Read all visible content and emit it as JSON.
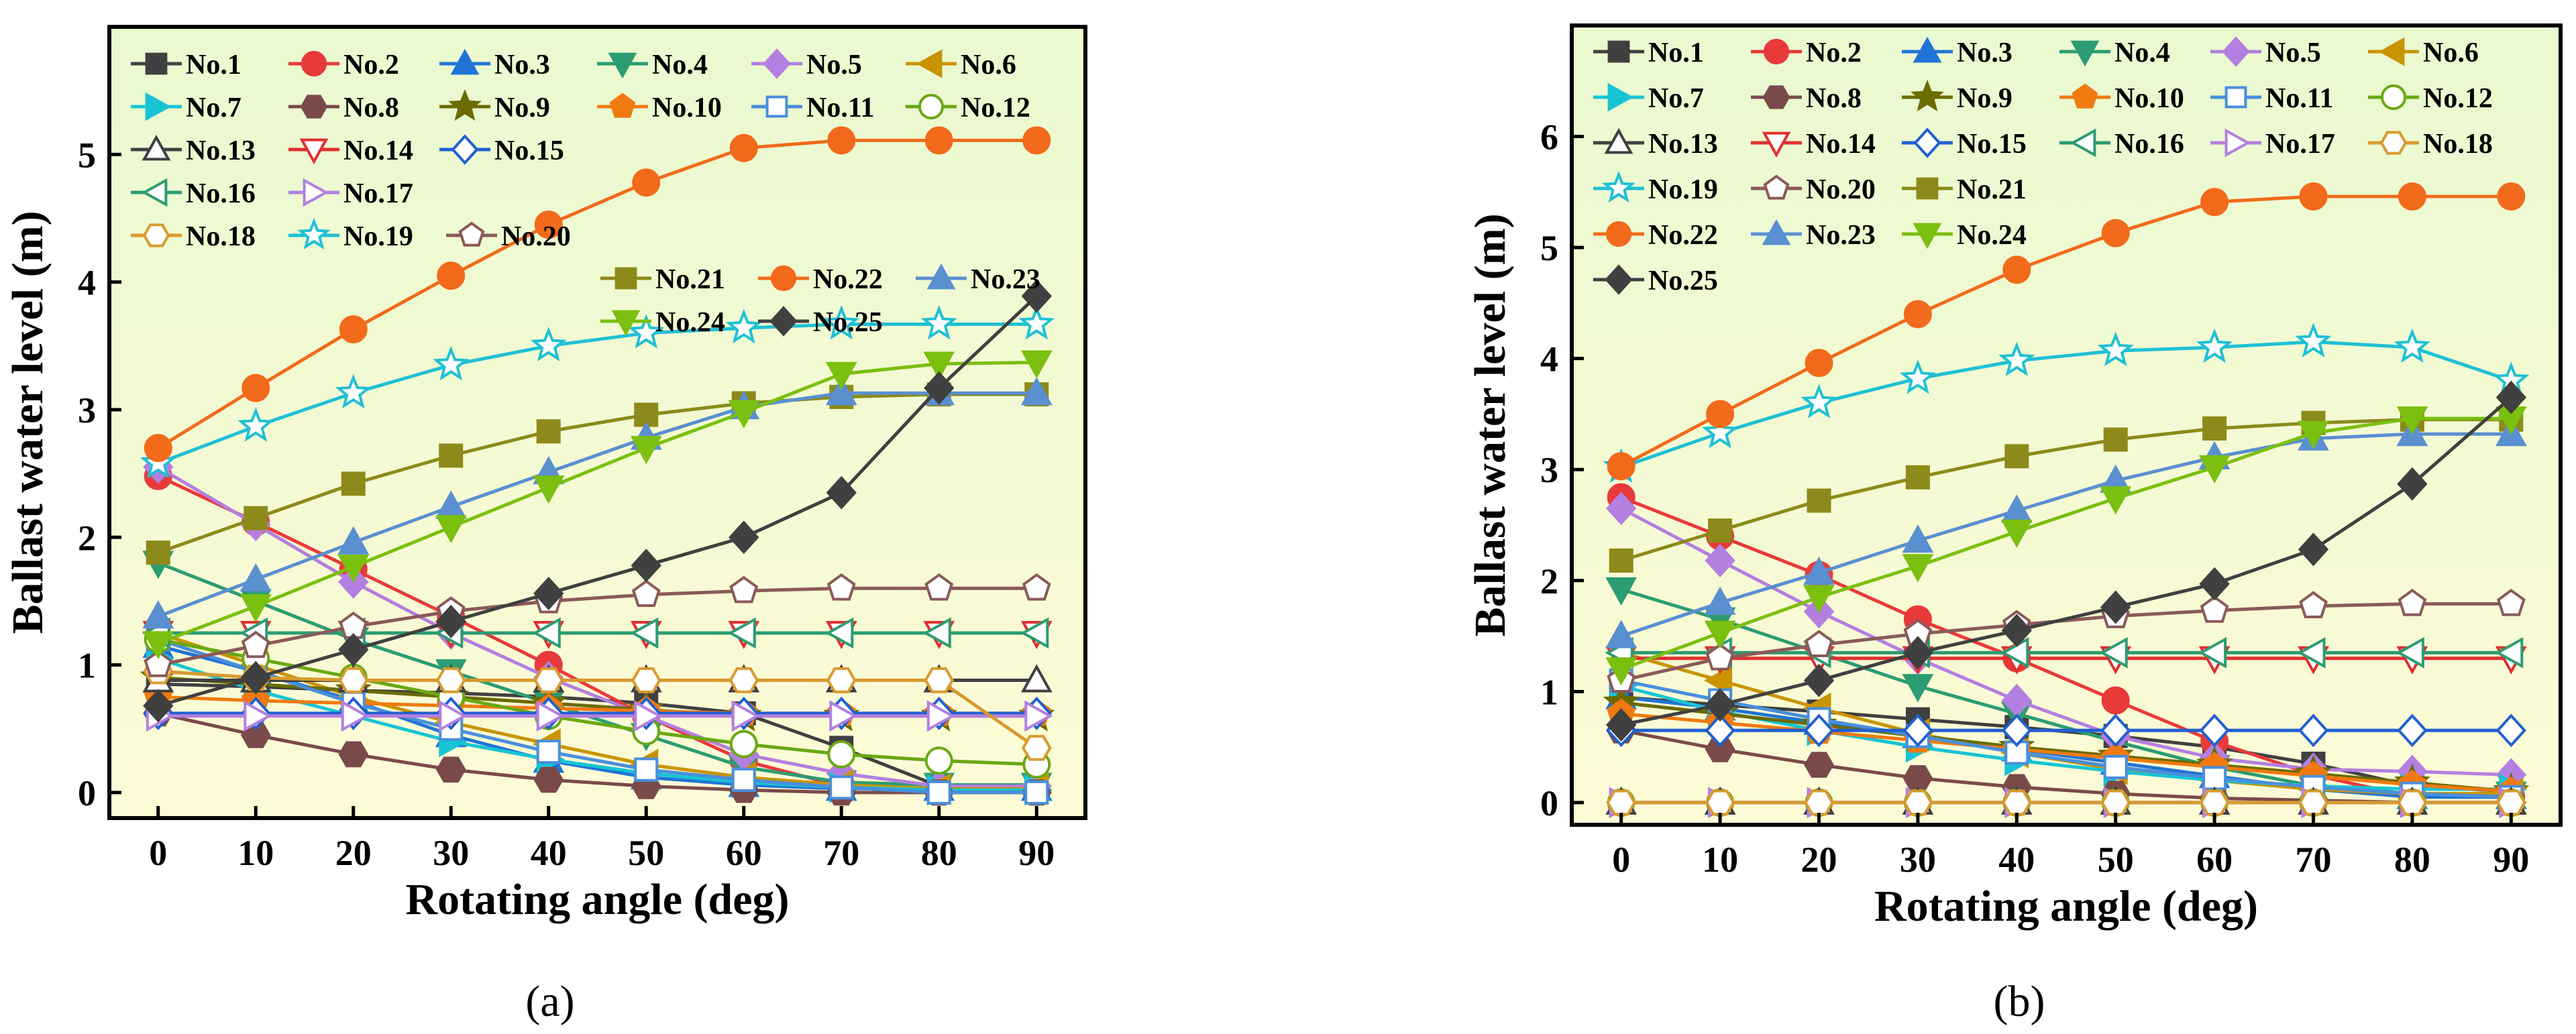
{
  "figure": {
    "caption_a": "(a)",
    "caption_b": "(b)"
  },
  "chart_data": [
    {
      "type": "line",
      "panel": "a",
      "title": "",
      "xlabel": "Rotating angle (deg)",
      "ylabel": "Ballast water level (m)",
      "x": [
        0,
        10,
        20,
        30,
        40,
        50,
        60,
        70,
        80,
        90
      ],
      "xlim": [
        -5,
        95
      ],
      "ylim": [
        -0.2,
        6.0
      ],
      "xticks": [
        0,
        10,
        20,
        30,
        40,
        50,
        60,
        70,
        80,
        90
      ],
      "yticks": [
        0,
        1,
        2,
        3,
        4,
        5
      ],
      "grid": false,
      "legend_rows": [
        [
          1,
          2,
          3,
          4,
          5,
          6
        ],
        [
          7,
          8,
          9,
          10,
          11,
          12
        ],
        [
          13,
          14,
          15
        ],
        [
          16,
          17
        ],
        [
          18,
          19,
          20
        ],
        [
          21,
          22,
          23
        ],
        [
          24,
          25
        ]
      ],
      "series": [
        {
          "name": "No.1",
          "color": "#404040",
          "marker": "square",
          "values": [
            0.85,
            0.83,
            0.8,
            0.78,
            0.75,
            0.7,
            0.62,
            0.35,
            0.05,
            0.03
          ]
        },
        {
          "name": "No.2",
          "color": "#e83a3a",
          "marker": "circle",
          "values": [
            2.48,
            2.12,
            1.75,
            1.38,
            1.0,
            0.6,
            0.25,
            0.05,
            0.02,
            0.02
          ]
        },
        {
          "name": "No.3",
          "color": "#1f74d6",
          "marker": "triangle-up",
          "values": [
            1.15,
            0.95,
            0.72,
            0.45,
            0.25,
            0.12,
            0.06,
            0.03,
            0.03,
            0.03
          ]
        },
        {
          "name": "No.4",
          "color": "#2c9c72",
          "marker": "triangle-down",
          "values": [
            1.8,
            1.5,
            1.2,
            0.95,
            0.7,
            0.45,
            0.2,
            0.08,
            0.06,
            0.06
          ]
        },
        {
          "name": "No.5",
          "color": "#b37fe0",
          "marker": "diamond",
          "values": [
            2.55,
            2.1,
            1.65,
            1.25,
            0.9,
            0.6,
            0.3,
            0.15,
            0.05,
            0.05
          ]
        },
        {
          "name": "No.6",
          "color": "#c99400",
          "marker": "triangle-left",
          "values": [
            1.25,
            1.0,
            0.75,
            0.55,
            0.38,
            0.22,
            0.12,
            0.06,
            0.03,
            0.03
          ]
        },
        {
          "name": "No.7",
          "color": "#17c4d4",
          "marker": "triangle-right",
          "values": [
            1.05,
            0.8,
            0.6,
            0.4,
            0.26,
            0.15,
            0.08,
            0.04,
            0.02,
            0.02
          ]
        },
        {
          "name": "No.8",
          "color": "#7a4a4a",
          "marker": "hexagon",
          "values": [
            0.62,
            0.45,
            0.3,
            0.18,
            0.1,
            0.05,
            0.02,
            0.0,
            0.0,
            0.0
          ]
        },
        {
          "name": "No.9",
          "color": "#6b6b00",
          "marker": "star",
          "values": [
            0.9,
            0.85,
            0.8,
            0.75,
            0.7,
            0.65,
            0.6,
            0.6,
            0.6,
            0.6
          ]
        },
        {
          "name": "No.10",
          "color": "#f07a10",
          "marker": "pentagon",
          "values": [
            0.75,
            0.72,
            0.7,
            0.68,
            0.66,
            0.64,
            0.62,
            0.62,
            0.62,
            0.62
          ]
        },
        {
          "name": "No.11",
          "color": "#4a8fdc",
          "marker": "square-open",
          "values": [
            1.2,
            0.95,
            0.7,
            0.5,
            0.32,
            0.18,
            0.1,
            0.04,
            0.0,
            0.0
          ]
        },
        {
          "name": "No.12",
          "color": "#6aa814",
          "marker": "circle-open",
          "values": [
            1.2,
            1.05,
            0.9,
            0.75,
            0.6,
            0.48,
            0.38,
            0.3,
            0.25,
            0.22
          ]
        },
        {
          "name": "No.13",
          "color": "#404040",
          "marker": "triangle-up-open",
          "values": [
            0.88,
            0.88,
            0.88,
            0.88,
            0.88,
            0.88,
            0.88,
            0.88,
            0.88,
            0.88
          ]
        },
        {
          "name": "No.14",
          "color": "#e03030",
          "marker": "triangle-down-open",
          "values": [
            1.25,
            1.25,
            1.25,
            1.25,
            1.25,
            1.25,
            1.25,
            1.25,
            1.25,
            1.25
          ]
        },
        {
          "name": "No.15",
          "color": "#2060d0",
          "marker": "diamond-open",
          "values": [
            0.62,
            0.62,
            0.62,
            0.62,
            0.62,
            0.62,
            0.62,
            0.62,
            0.62,
            0.62
          ]
        },
        {
          "name": "No.16",
          "color": "#2c9c72",
          "marker": "triangle-left-open",
          "values": [
            1.25,
            1.25,
            1.25,
            1.25,
            1.25,
            1.25,
            1.25,
            1.25,
            1.25,
            1.25
          ]
        },
        {
          "name": "No.17",
          "color": "#b37fe0",
          "marker": "triangle-right-open",
          "values": [
            0.6,
            0.6,
            0.6,
            0.6,
            0.6,
            0.6,
            0.6,
            0.6,
            0.6,
            0.6
          ]
        },
        {
          "name": "No.18",
          "color": "#d89a30",
          "marker": "hexagon-open",
          "values": [
            0.95,
            0.9,
            0.88,
            0.88,
            0.88,
            0.88,
            0.88,
            0.88,
            0.88,
            0.35
          ]
        },
        {
          "name": "No.19",
          "color": "#20c0d4",
          "marker": "star-open",
          "values": [
            2.58,
            2.87,
            3.13,
            3.35,
            3.5,
            3.6,
            3.64,
            3.67,
            3.67,
            3.67
          ]
        },
        {
          "name": "No.20",
          "color": "#8a5a5a",
          "marker": "pentagon-open",
          "values": [
            1.0,
            1.15,
            1.3,
            1.42,
            1.5,
            1.55,
            1.58,
            1.6,
            1.6,
            1.6
          ]
        },
        {
          "name": "No.21",
          "color": "#8c8a1a",
          "marker": "square",
          "values": [
            1.88,
            2.15,
            2.42,
            2.64,
            2.83,
            2.96,
            3.05,
            3.1,
            3.12,
            3.12
          ]
        },
        {
          "name": "No.22",
          "color": "#f26a1b",
          "marker": "circle",
          "values": [
            2.7,
            3.17,
            3.63,
            4.05,
            4.45,
            4.78,
            5.05,
            5.11,
            5.11,
            5.11
          ]
        },
        {
          "name": "No.23",
          "color": "#5a8fd0",
          "marker": "triangle-up",
          "values": [
            1.38,
            1.67,
            1.96,
            2.24,
            2.51,
            2.78,
            3.02,
            3.13,
            3.13,
            3.13
          ]
        },
        {
          "name": "No.24",
          "color": "#7bbf10",
          "marker": "triangle-down",
          "values": [
            1.17,
            1.46,
            1.77,
            2.08,
            2.39,
            2.7,
            2.98,
            3.28,
            3.36,
            3.37
          ]
        },
        {
          "name": "No.25",
          "color": "#404040",
          "marker": "diamond",
          "values": [
            0.68,
            0.9,
            1.12,
            1.34,
            1.56,
            1.78,
            2.0,
            2.35,
            3.17,
            3.89
          ]
        }
      ]
    },
    {
      "type": "line",
      "panel": "b",
      "title": "",
      "xlabel": "Rotating angle (deg)",
      "ylabel": "Ballast water level (m)",
      "x": [
        0,
        10,
        20,
        30,
        40,
        50,
        60,
        70,
        80,
        90
      ],
      "xlim": [
        -5,
        95
      ],
      "ylim": [
        -0.2,
        7.0
      ],
      "xticks": [
        0,
        10,
        20,
        30,
        40,
        50,
        60,
        70,
        80,
        90
      ],
      "yticks": [
        0,
        1,
        2,
        3,
        4,
        5,
        6
      ],
      "grid": false,
      "legend_rows": [
        [
          1,
          2,
          3,
          4,
          5,
          6
        ],
        [
          7,
          8,
          9,
          10,
          11,
          12
        ],
        [
          13,
          14,
          15,
          16,
          17,
          18
        ],
        [
          19,
          20,
          21
        ],
        [
          22,
          23,
          24
        ],
        [
          25
        ]
      ],
      "series": [
        {
          "name": "No.1",
          "color": "#404040",
          "marker": "square",
          "values": [
            0.95,
            0.88,
            0.82,
            0.75,
            0.68,
            0.6,
            0.5,
            0.35,
            0.15,
            0.1
          ]
        },
        {
          "name": "No.2",
          "color": "#e83a3a",
          "marker": "circle",
          "values": [
            2.75,
            2.4,
            2.05,
            1.65,
            1.3,
            0.92,
            0.55,
            0.25,
            0.05,
            0.05
          ]
        },
        {
          "name": "No.3",
          "color": "#1f74d6",
          "marker": "triangle-up",
          "values": [
            0.95,
            0.85,
            0.72,
            0.6,
            0.48,
            0.36,
            0.24,
            0.12,
            0.05,
            0.05
          ]
        },
        {
          "name": "No.4",
          "color": "#2c9c72",
          "marker": "triangle-down",
          "values": [
            1.92,
            1.65,
            1.35,
            1.05,
            0.8,
            0.55,
            0.32,
            0.15,
            0.08,
            0.08
          ]
        },
        {
          "name": "No.5",
          "color": "#b37fe0",
          "marker": "diamond",
          "values": [
            2.65,
            2.18,
            1.72,
            1.3,
            0.92,
            0.6,
            0.4,
            0.3,
            0.28,
            0.25
          ]
        },
        {
          "name": "No.6",
          "color": "#c99400",
          "marker": "triangle-left",
          "values": [
            1.35,
            1.1,
            0.85,
            0.62,
            0.45,
            0.3,
            0.2,
            0.12,
            0.08,
            0.08
          ]
        },
        {
          "name": "No.7",
          "color": "#17c4d4",
          "marker": "triangle-right",
          "values": [
            1.05,
            0.82,
            0.65,
            0.5,
            0.38,
            0.28,
            0.2,
            0.15,
            0.12,
            0.12
          ]
        },
        {
          "name": "No.8",
          "color": "#7a4a4a",
          "marker": "hexagon",
          "values": [
            0.65,
            0.48,
            0.34,
            0.22,
            0.14,
            0.08,
            0.04,
            0.02,
            0.0,
            0.0
          ]
        },
        {
          "name": "No.9",
          "color": "#6b6b00",
          "marker": "star",
          "values": [
            0.9,
            0.8,
            0.7,
            0.6,
            0.5,
            0.42,
            0.34,
            0.26,
            0.18,
            0.1
          ]
        },
        {
          "name": "No.10",
          "color": "#f07a10",
          "marker": "pentagon",
          "values": [
            0.8,
            0.72,
            0.64,
            0.56,
            0.48,
            0.4,
            0.32,
            0.24,
            0.16,
            0.1
          ]
        },
        {
          "name": "No.11",
          "color": "#4a8fdc",
          "marker": "square-open",
          "values": [
            1.1,
            0.92,
            0.75,
            0.6,
            0.45,
            0.32,
            0.22,
            0.14,
            0.08,
            0.05
          ]
        },
        {
          "name": "No.12",
          "color": "#6aa814",
          "marker": "circle-open",
          "values": [
            0.0,
            0.0,
            0.0,
            0.0,
            0.0,
            0.0,
            0.0,
            0.0,
            0.0,
            0.0
          ]
        },
        {
          "name": "No.13",
          "color": "#404040",
          "marker": "triangle-up-open",
          "values": [
            0.0,
            0.0,
            0.0,
            0.0,
            0.0,
            0.0,
            0.0,
            0.0,
            0.0,
            0.0
          ]
        },
        {
          "name": "No.14",
          "color": "#e03030",
          "marker": "triangle-down-open",
          "values": [
            1.3,
            1.3,
            1.3,
            1.3,
            1.3,
            1.3,
            1.3,
            1.3,
            1.3,
            1.3
          ]
        },
        {
          "name": "No.15",
          "color": "#2060d0",
          "marker": "diamond-open",
          "values": [
            0.65,
            0.65,
            0.65,
            0.65,
            0.65,
            0.65,
            0.65,
            0.65,
            0.65,
            0.65
          ]
        },
        {
          "name": "No.16",
          "color": "#2c9c72",
          "marker": "triangle-left-open",
          "values": [
            1.35,
            1.35,
            1.35,
            1.35,
            1.35,
            1.35,
            1.35,
            1.35,
            1.35,
            1.35
          ]
        },
        {
          "name": "No.17",
          "color": "#b37fe0",
          "marker": "triangle-right-open",
          "values": [
            0.0,
            0.0,
            0.0,
            0.0,
            0.0,
            0.0,
            0.0,
            0.0,
            0.0,
            0.0
          ]
        },
        {
          "name": "No.18",
          "color": "#d89a30",
          "marker": "hexagon-open",
          "values": [
            0.0,
            0.0,
            0.0,
            0.0,
            0.0,
            0.0,
            0.0,
            0.0,
            0.0,
            0.0
          ]
        },
        {
          "name": "No.19",
          "color": "#20c0d4",
          "marker": "star-open",
          "values": [
            3.02,
            3.33,
            3.6,
            3.82,
            3.98,
            4.07,
            4.1,
            4.15,
            4.1,
            3.8
          ]
        },
        {
          "name": "No.20",
          "color": "#8a5a5a",
          "marker": "pentagon-open",
          "values": [
            1.1,
            1.3,
            1.42,
            1.52,
            1.6,
            1.68,
            1.73,
            1.77,
            1.79,
            1.79
          ]
        },
        {
          "name": "No.21",
          "color": "#8c8a1a",
          "marker": "square",
          "values": [
            2.18,
            2.45,
            2.72,
            2.93,
            3.12,
            3.27,
            3.37,
            3.42,
            3.45,
            3.45
          ]
        },
        {
          "name": "No.22",
          "color": "#f26a1b",
          "marker": "circle",
          "values": [
            3.03,
            3.5,
            3.96,
            4.4,
            4.8,
            5.13,
            5.41,
            5.46,
            5.46,
            5.46
          ]
        },
        {
          "name": "No.23",
          "color": "#5a8fd0",
          "marker": "triangle-up",
          "values": [
            1.5,
            1.8,
            2.07,
            2.36,
            2.63,
            2.9,
            3.11,
            3.28,
            3.32,
            3.32
          ]
        },
        {
          "name": "No.24",
          "color": "#7bbf10",
          "marker": "triangle-down",
          "values": [
            1.2,
            1.53,
            1.85,
            2.13,
            2.44,
            2.74,
            3.02,
            3.33,
            3.46,
            3.46
          ]
        },
        {
          "name": "No.25",
          "color": "#404040",
          "marker": "diamond",
          "values": [
            0.7,
            0.88,
            1.1,
            1.35,
            1.55,
            1.76,
            1.97,
            2.28,
            2.87,
            3.65
          ]
        }
      ]
    }
  ]
}
